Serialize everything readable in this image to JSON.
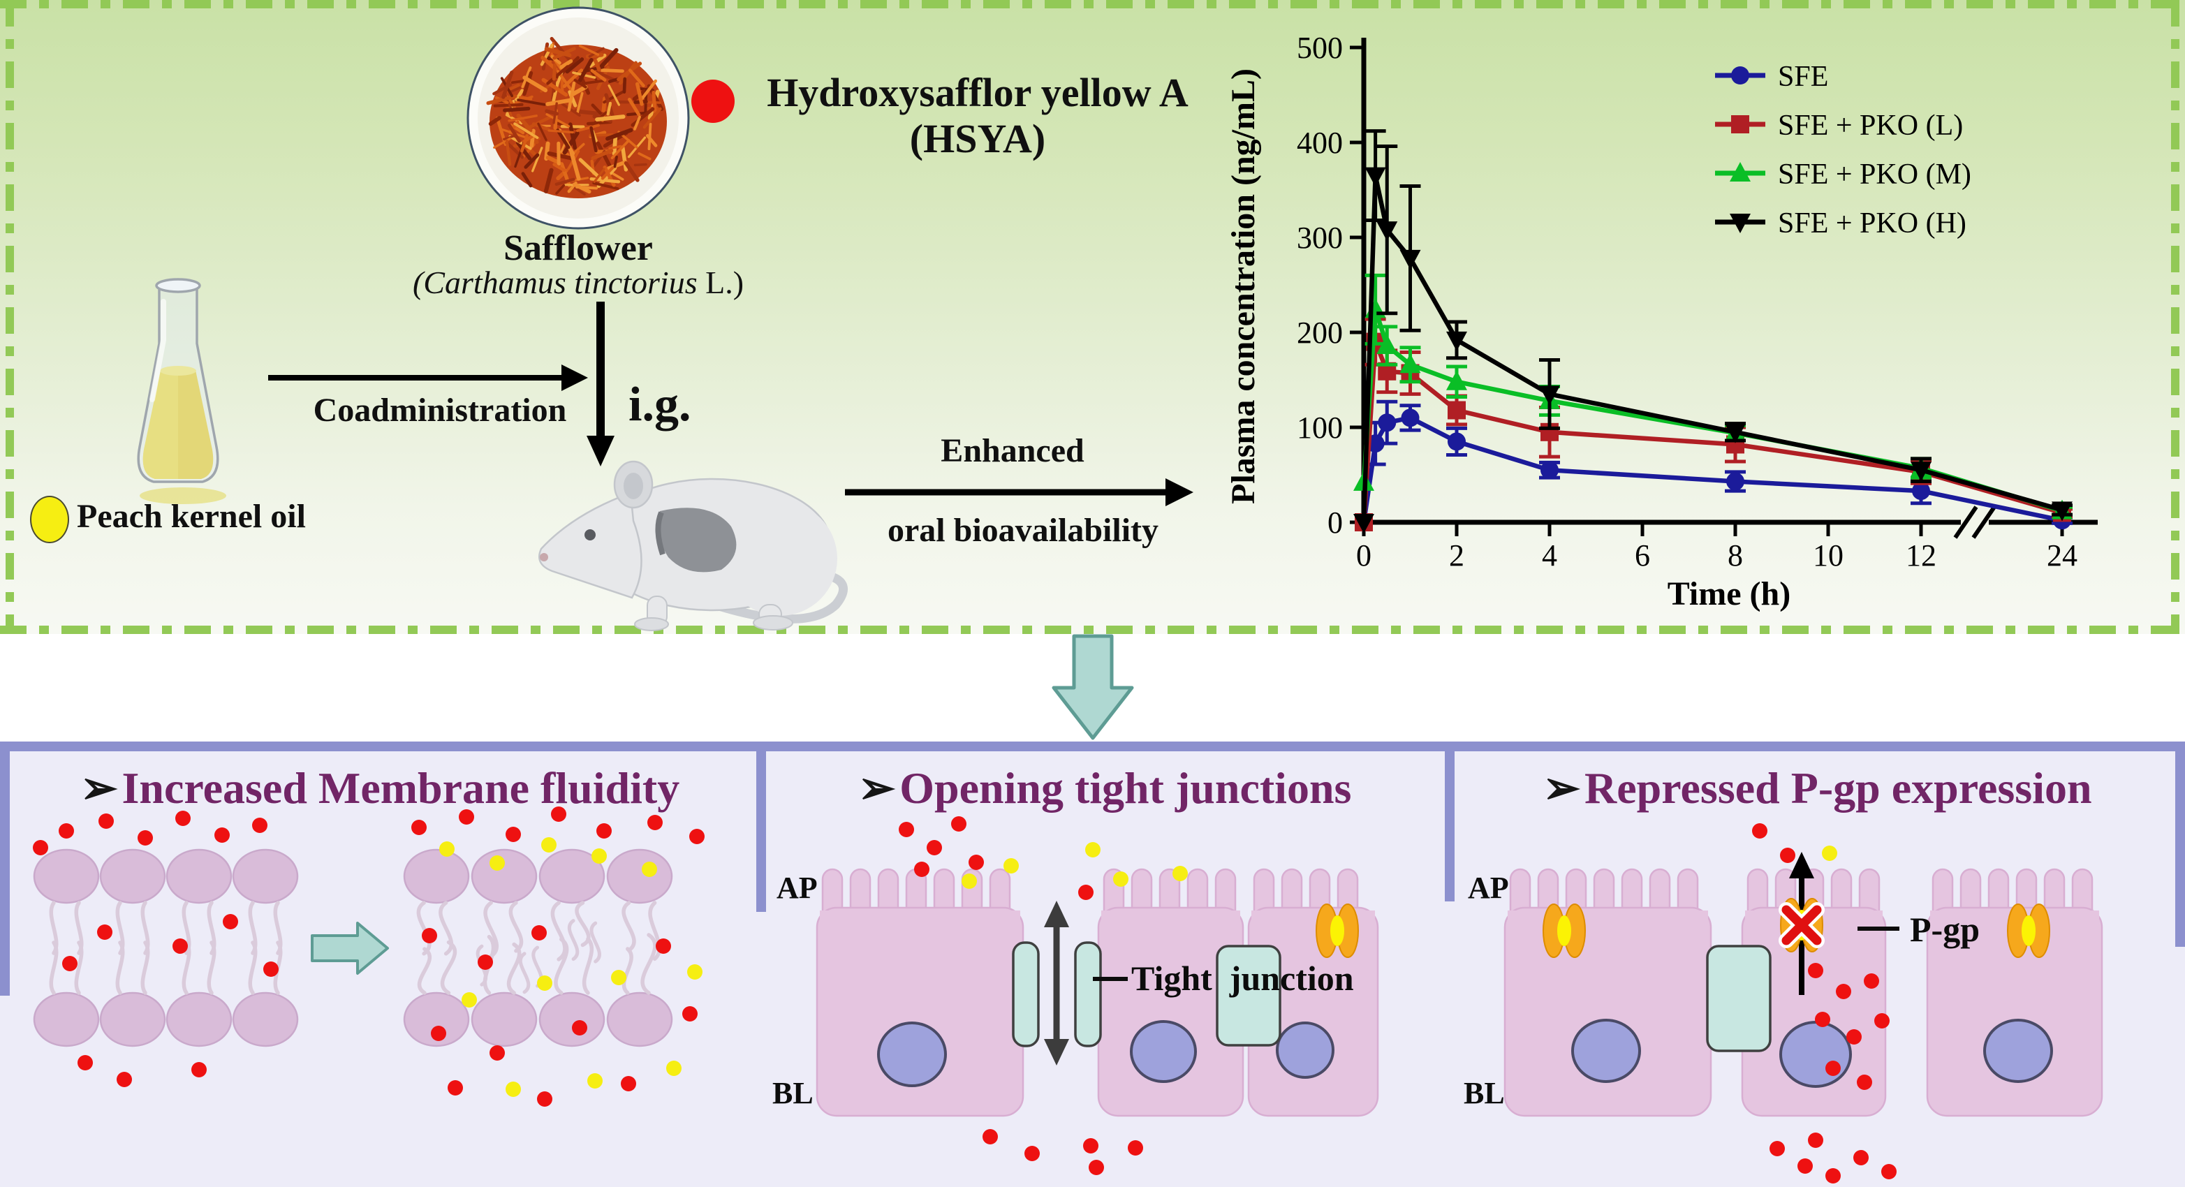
{
  "top_panel": {
    "safflower_title": "Safflower",
    "safflower_latin_italic": "(Carthamus tinctorius",
    "safflower_latin_roman": " L.)",
    "hsya_line1": "Hydroxysafflor yellow A",
    "hsya_line2": "(HSYA)",
    "peach_label": "Peach kernel oil",
    "coadministration_label": "Coadministration",
    "ig_label": "i.g.",
    "enhanced_line1": "Enhanced",
    "enhanced_line2": "oral bioavailability"
  },
  "chart_data": {
    "type": "line",
    "title": "",
    "xlabel": "Time (h)",
    "ylabel": "Plasma concentration (ng/mL)",
    "ylim": [
      0,
      500
    ],
    "y_ticks": [
      0,
      100,
      200,
      300,
      400,
      500
    ],
    "x_ticks": [
      0,
      2,
      4,
      6,
      8,
      10,
      12,
      24
    ],
    "x_break": {
      "after": 12,
      "before": 24
    },
    "grid": false,
    "legend_position": "top-right",
    "x": [
      0,
      0.25,
      0.5,
      1,
      2,
      4,
      8,
      12,
      24
    ],
    "series": [
      {
        "name": "SFE",
        "color": "#1B1B9A",
        "marker": "circle",
        "values": [
          0,
          83,
          105,
          110,
          85,
          55,
          43,
          33,
          2
        ],
        "errors": [
          0,
          22,
          22,
          13,
          14,
          8,
          10,
          13,
          3
        ]
      },
      {
        "name": "SFE + PKO (L)",
        "color": "#B01F24",
        "marker": "square",
        "values": [
          0,
          190,
          159,
          157,
          118,
          95,
          82,
          53,
          10
        ],
        "errors": [
          0,
          24,
          22,
          22,
          15,
          26,
          18,
          12,
          4
        ]
      },
      {
        "name": "SFE + PKO (M)",
        "color": "#0ABE26",
        "marker": "triangle-up",
        "values": [
          42,
          224,
          186,
          166,
          148,
          128,
          94,
          57,
          12
        ],
        "errors": [
          0,
          36,
          20,
          18,
          16,
          15,
          8,
          10,
          4
        ]
      },
      {
        "name": "SFE + PKO (H)",
        "color": "#000000",
        "marker": "triangle-down",
        "values": [
          0,
          365,
          308,
          278,
          192,
          135,
          95,
          55,
          13
        ],
        "errors": [
          0,
          47,
          88,
          76,
          19,
          36,
          9,
          12,
          5
        ]
      }
    ]
  },
  "bottom": {
    "bullet": "➢",
    "panels": [
      {
        "title": "Increased Membrane fluidity"
      },
      {
        "title": "Opening tight junctions",
        "ap": "AP",
        "bl": "BL",
        "junction_label": "Tight junction"
      },
      {
        "title": "Repressed P-gp expression",
        "ap": "AP",
        "bl": "BL",
        "pgp_label": "P-gp"
      }
    ]
  },
  "colors": {
    "dashed_border_green": "#92C956",
    "panel_top_green": "#C9E1A6",
    "bottom_bg_lavender": "#EDECF8",
    "frame_purple": "#8C90CE",
    "title_purple": "#712566",
    "hsya_red": "#EE1111",
    "pko_yellow": "#F6EE12",
    "cell_pink": "#E5C5E0",
    "lipid_head_mauve": "#D9BCD9",
    "nucleus_periwinkle": "#9EA2DC",
    "tight_junction_teal": "#C8E7E1",
    "transporter_orange": "#F6A81C",
    "block_arrow_teal": "#AFD8D2"
  }
}
